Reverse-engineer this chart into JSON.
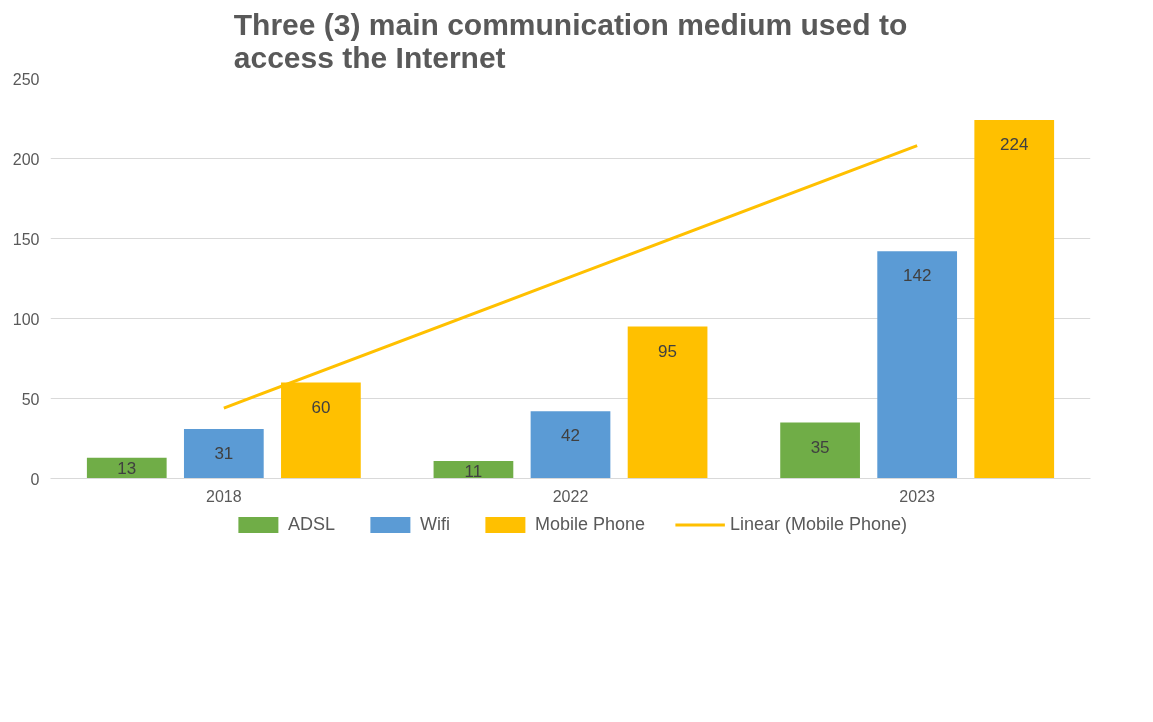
{
  "chart_data": {
    "type": "bar",
    "title": "Three (3) main communication medium used to access the Internet",
    "categories": [
      "2018",
      "2022",
      "2023"
    ],
    "series": [
      {
        "name": "ADSL",
        "color": "#70ad47",
        "values": [
          13,
          11,
          35
        ],
        "value_labels": [
          "13",
          "11",
          "35"
        ]
      },
      {
        "name": "Wifi",
        "color": "#5b9bd5",
        "values": [
          31,
          42,
          142
        ],
        "value_labels": [
          "31",
          "42",
          "142"
        ]
      },
      {
        "name": "Mobile Phone",
        "color": "#ffc000",
        "values": [
          60,
          95,
          224
        ],
        "value_labels": [
          "60",
          "95",
          "224"
        ]
      },
      {
        "name": "Linear (Mobile Phone)",
        "type": "line",
        "color": "#ffc000",
        "values": [
          44,
          126,
          208
        ]
      }
    ],
    "ylim": [
      0,
      250
    ],
    "yticks": [
      0,
      50,
      100,
      150,
      200,
      250
    ],
    "grid": "y",
    "legend": "bottom",
    "line_style": "solid"
  }
}
